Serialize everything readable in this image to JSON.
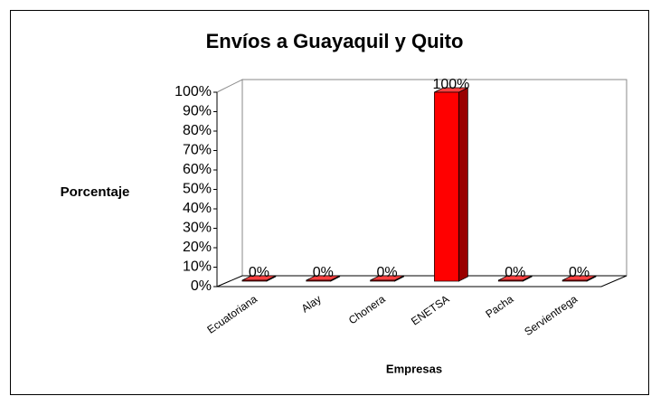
{
  "chart_data": {
    "type": "bar3d",
    "title": "Envíos a Guayaquil y Quito",
    "y_label": "Porcentaje",
    "x_label": "Empresas",
    "categories": [
      "Ecuatoriana",
      "Alay",
      "Chonera",
      "ENETSA",
      "Pacha",
      "Servientrega"
    ],
    "values": [
      0,
      0,
      0,
      100,
      0,
      0
    ],
    "value_labels": [
      "0%",
      "0%",
      "0%",
      "100%",
      "0%",
      "0%"
    ],
    "color": "#ff0000",
    "ylim": [
      0,
      100
    ],
    "yticks": [
      {
        "value": 0,
        "label": "0%"
      },
      {
        "value": 10,
        "label": "10%"
      },
      {
        "value": 20,
        "label": "20%"
      },
      {
        "value": 30,
        "label": "30%"
      },
      {
        "value": 40,
        "label": "40%"
      },
      {
        "value": 50,
        "label": "50%"
      },
      {
        "value": 60,
        "label": "60%"
      },
      {
        "value": 70,
        "label": "70%"
      },
      {
        "value": 80,
        "label": "80%"
      },
      {
        "value": 90,
        "label": "90%"
      },
      {
        "value": 100,
        "label": "100%"
      }
    ]
  }
}
